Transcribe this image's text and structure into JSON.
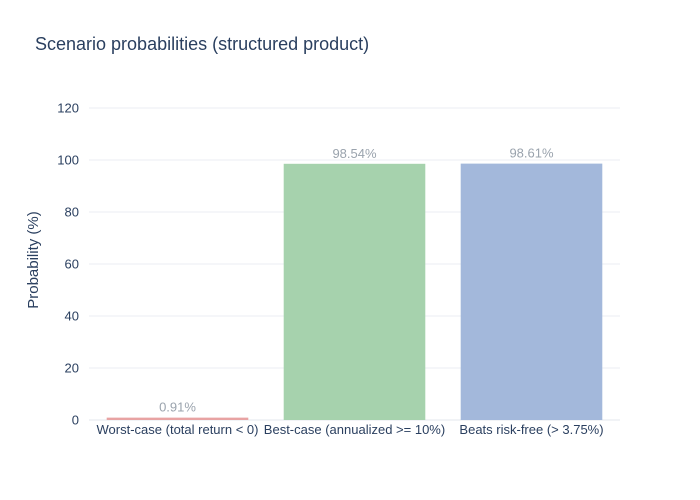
{
  "chart_data": {
    "type": "bar",
    "title": "Scenario probabilities (structured product)",
    "xlabel": "",
    "ylabel": "Probability (%)",
    "ylim": [
      0,
      120
    ],
    "yticks": [
      0,
      20,
      40,
      60,
      80,
      100,
      120
    ],
    "grid": true,
    "legend": "none",
    "categories": [
      "Worst-case (total return < 0)",
      "Best-case (annualized >= 10%)",
      "Beats risk-free (> 3.75%)"
    ],
    "values": [
      0.91,
      98.54,
      98.61
    ],
    "data_labels": [
      "0.91%",
      "98.54%",
      "98.61%"
    ],
    "bar_colors": [
      "#e8a3a3",
      "#a6d2ad",
      "#a3b8db"
    ],
    "label_color": "#9aa3ad"
  }
}
